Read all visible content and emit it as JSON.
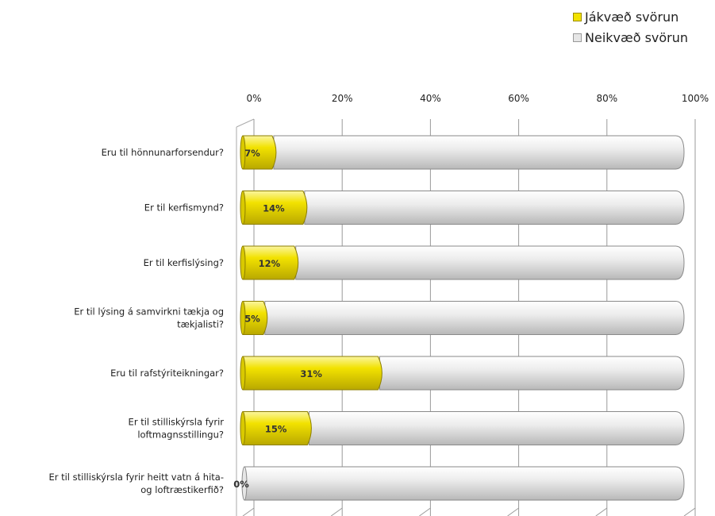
{
  "legend": {
    "positive_label": "Jákvæð svörun",
    "negative_label": "Neikvæð svörun"
  },
  "colors": {
    "positive": "#f2e200",
    "negative": "#e6e6e6"
  },
  "chart_data": {
    "type": "bar",
    "orientation": "horizontal",
    "stacked": true,
    "xlim": [
      0,
      100
    ],
    "x_ticks": [
      "0%",
      "20%",
      "40%",
      "60%",
      "80%",
      "100%"
    ],
    "tick_position": "top",
    "legend_position": "top-right",
    "grid": true,
    "categories": [
      [
        "Eru til hönnunarforsendur?"
      ],
      [
        "Er til kerfismynd?"
      ],
      [
        "Er til kerfislýsing?"
      ],
      [
        "Er til lýsing á samvirkni tækja og",
        "tækjalisti?"
      ],
      [
        "Eru til rafstýriteikningar?"
      ],
      [
        "Er til stilliskýrsla fyrir",
        "loftmagnsstillingu?"
      ],
      [
        "Er til stilliskýrsla fyrir heitt vatn á hita-",
        "og loftræstikerfið?"
      ]
    ],
    "series": [
      {
        "name": "Jákvæð svörun",
        "values": [
          7,
          14,
          12,
          5,
          31,
          15,
          0
        ],
        "labels": [
          "7%",
          "14%",
          "12%",
          "5%",
          "31%",
          "15%",
          "0%"
        ]
      },
      {
        "name": "Neikvæð svörun",
        "values": [
          93,
          86,
          88,
          95,
          69,
          85,
          100
        ]
      }
    ]
  }
}
